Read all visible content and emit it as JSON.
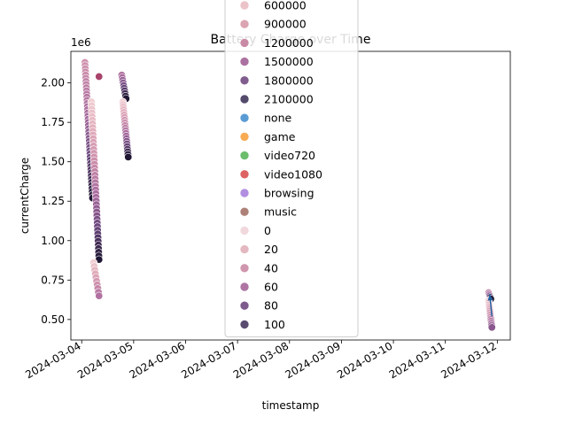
{
  "chart_data": {
    "type": "scatter",
    "title": "Battery Charge over Time",
    "xlabel": "timestamp",
    "ylabel": "currentCharge",
    "y_offset_label": "1e6",
    "x_tick_labels": [
      "2024-03-04",
      "2024-03-05",
      "2024-03-06",
      "2024-03-07",
      "2024-03-08",
      "2024-03-09",
      "2024-03-10",
      "2024-03-11",
      "2024-03-12"
    ],
    "y_ticks": [
      0.5,
      0.75,
      1.0,
      1.25,
      1.5,
      1.75,
      2.0
    ],
    "y_tick_labels": [
      "0.50",
      "0.75",
      "1.00",
      "1.25",
      "1.50",
      "1.75",
      "2.00"
    ],
    "xlim": [
      "2024-03-03T19:00",
      "2024-03-12T06:00"
    ],
    "ylim": [
      0.37,
      2.2
    ],
    "grid": false,
    "legend": {
      "placement": "top-center",
      "entries": [
        {
          "label": "600000",
          "color": "#ebc3c9",
          "kind": "hue"
        },
        {
          "label": "900000",
          "color": "#dba4b2",
          "kind": "hue"
        },
        {
          "label": "1200000",
          "color": "#c98aa6",
          "kind": "hue"
        },
        {
          "label": "1500000",
          "color": "#ab71a0",
          "kind": "hue"
        },
        {
          "label": "1800000",
          "color": "#815d8f",
          "kind": "hue"
        },
        {
          "label": "2100000",
          "color": "#544a6c",
          "kind": "hue"
        },
        {
          "label": "none",
          "color": "#5a9bd4",
          "kind": "style"
        },
        {
          "label": "game",
          "color": "#f8ab53",
          "kind": "style"
        },
        {
          "label": "video720",
          "color": "#6cbd6c",
          "kind": "style"
        },
        {
          "label": "video1080",
          "color": "#dd6363",
          "kind": "style"
        },
        {
          "label": "browsing",
          "color": "#b28ee0",
          "kind": "style"
        },
        {
          "label": "music",
          "color": "#ad8177",
          "kind": "style"
        },
        {
          "label": "0",
          "color": "#f0d8dc",
          "kind": "size"
        },
        {
          "label": "20",
          "color": "#e4b8c0",
          "kind": "size"
        },
        {
          "label": "40",
          "color": "#cf96ad",
          "kind": "size"
        },
        {
          "label": "60",
          "color": "#ae75a3",
          "kind": "size"
        },
        {
          "label": "80",
          "color": "#7e5b8d",
          "kind": "size"
        },
        {
          "label": "100",
          "color": "#5a4c70",
          "kind": "size"
        }
      ]
    },
    "series": [
      {
        "start": "2024-03-04T01:30",
        "end": "2024-03-04T05:00",
        "y_start": 2.13,
        "y_end": 1.27,
        "count": 44,
        "c_start": 0.35,
        "c_end": 1.0
      },
      {
        "start": "2024-03-04T04:30",
        "end": "2024-03-04T08:00",
        "y_start": 1.88,
        "y_end": 0.88,
        "count": 44,
        "c_start": 0.0,
        "c_end": 1.0
      },
      {
        "start": "2024-03-04T05:30",
        "end": "2024-03-04T08:00",
        "y_start": 0.86,
        "y_end": 0.65,
        "count": 10,
        "c_start": 0.0,
        "c_end": 0.55
      },
      {
        "start": "2024-03-04T18:30",
        "end": "2024-03-04T20:30",
        "y_start": 2.05,
        "y_end": 1.9,
        "count": 10,
        "c_start": 0.55,
        "c_end": 1.0
      },
      {
        "start": "2024-03-04T19:00",
        "end": "2024-03-04T21:30",
        "y_start": 1.88,
        "y_end": 1.53,
        "count": 22,
        "c_start": 0.0,
        "c_end": 1.0
      },
      {
        "start": "2024-03-11T20:00",
        "end": "2024-03-11T21:00",
        "y_start": 0.67,
        "y_end": 0.63,
        "count": 5,
        "c_start": 0.45,
        "c_end": 1.0
      },
      {
        "start": "2024-03-11T20:00",
        "end": "2024-03-11T21:30",
        "y_start": 0.62,
        "y_end": 0.45,
        "count": 14,
        "c_start": 0.0,
        "c_end": 0.7
      }
    ],
    "single_points": [
      {
        "x": "2024-03-04T08:00",
        "y": 2.04,
        "color": "#a8436a"
      }
    ],
    "arrows": [
      {
        "x_start": "2024-03-11T21:30",
        "y_start": 0.52,
        "x_end": "2024-03-11T20:30",
        "y_end": 0.66,
        "color": "#1f5f9f"
      }
    ]
  }
}
